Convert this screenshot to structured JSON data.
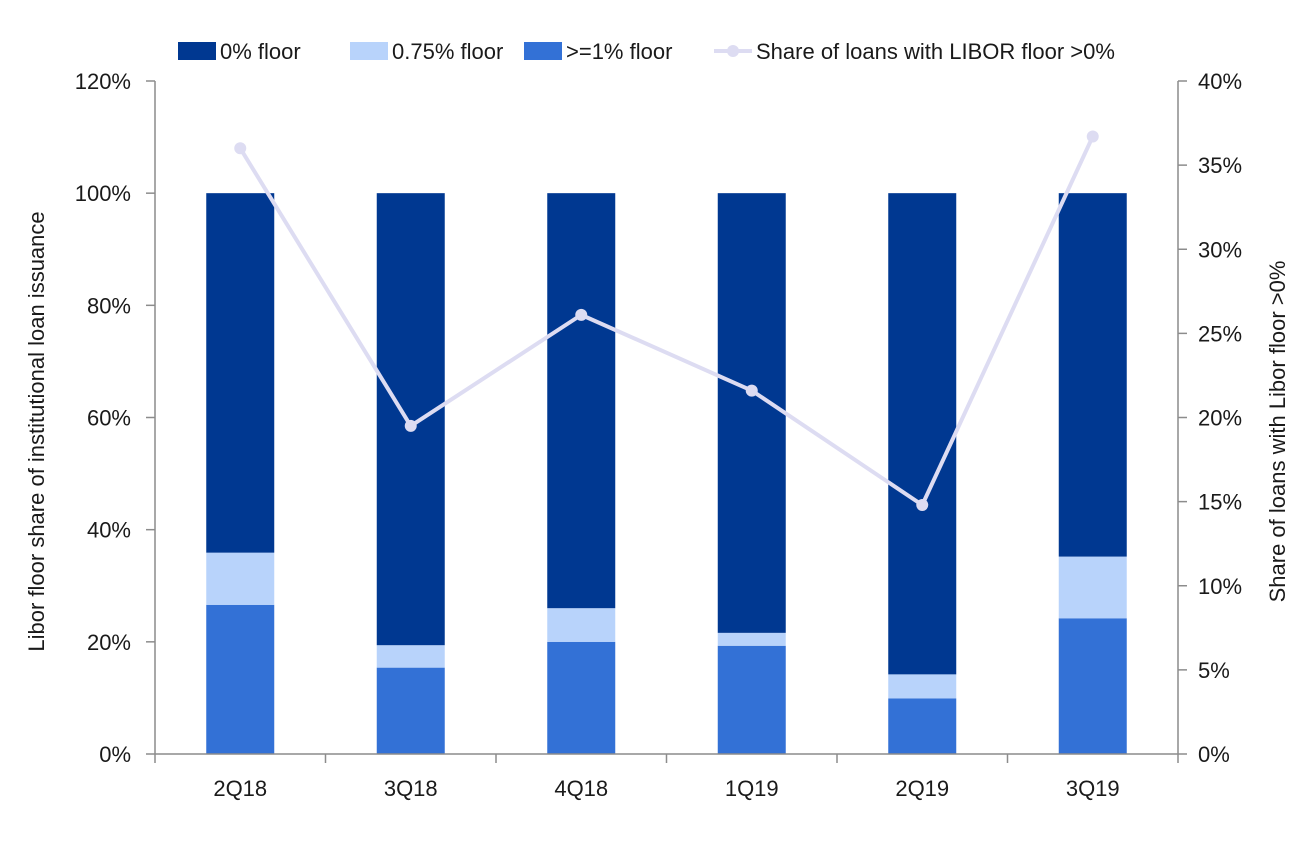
{
  "chart_data": {
    "type": "bar",
    "stacked": true,
    "categories": [
      "2Q18",
      "3Q18",
      "4Q18",
      "1Q19",
      "2Q19",
      "3Q19"
    ],
    "series": [
      {
        "name": ">=1% floor",
        "type": "bar",
        "axis": "left",
        "color": "#3371d6",
        "values": [
          26.6,
          15.4,
          20.0,
          19.3,
          9.9,
          24.2
        ]
      },
      {
        "name": "0.75% floor",
        "type": "bar",
        "axis": "left",
        "color": "#b8d3fb",
        "values": [
          9.3,
          4.0,
          6.0,
          2.3,
          4.3,
          11.0
        ]
      },
      {
        "name": "0% floor",
        "type": "bar",
        "axis": "left",
        "color": "#003891",
        "values": [
          64.1,
          80.6,
          74.0,
          78.4,
          85.8,
          64.8
        ]
      },
      {
        "name": "Share of loans with LIBOR floor >0%",
        "type": "line",
        "axis": "right",
        "color": "#dddcf2",
        "values": [
          36.0,
          19.5,
          26.1,
          21.6,
          14.8,
          36.7
        ]
      }
    ],
    "legend_order": [
      "0% floor",
      "0.75% floor",
      ">=1% floor",
      "Share of loans with LIBOR floor >0%"
    ],
    "legend_position": "top",
    "ylabel": "Libor floor share of institutional loan issuance",
    "y2label": "Share of loans with Libor floor >0%",
    "ylim": [
      0,
      120
    ],
    "y2lim": [
      0,
      40
    ],
    "yticks": [
      "0%",
      "20%",
      "40%",
      "60%",
      "80%",
      "100%",
      "120%"
    ],
    "y2ticks": [
      "0%",
      "5%",
      "10%",
      "15%",
      "20%",
      "25%",
      "30%",
      "35%",
      "40%"
    ],
    "grid": false
  }
}
